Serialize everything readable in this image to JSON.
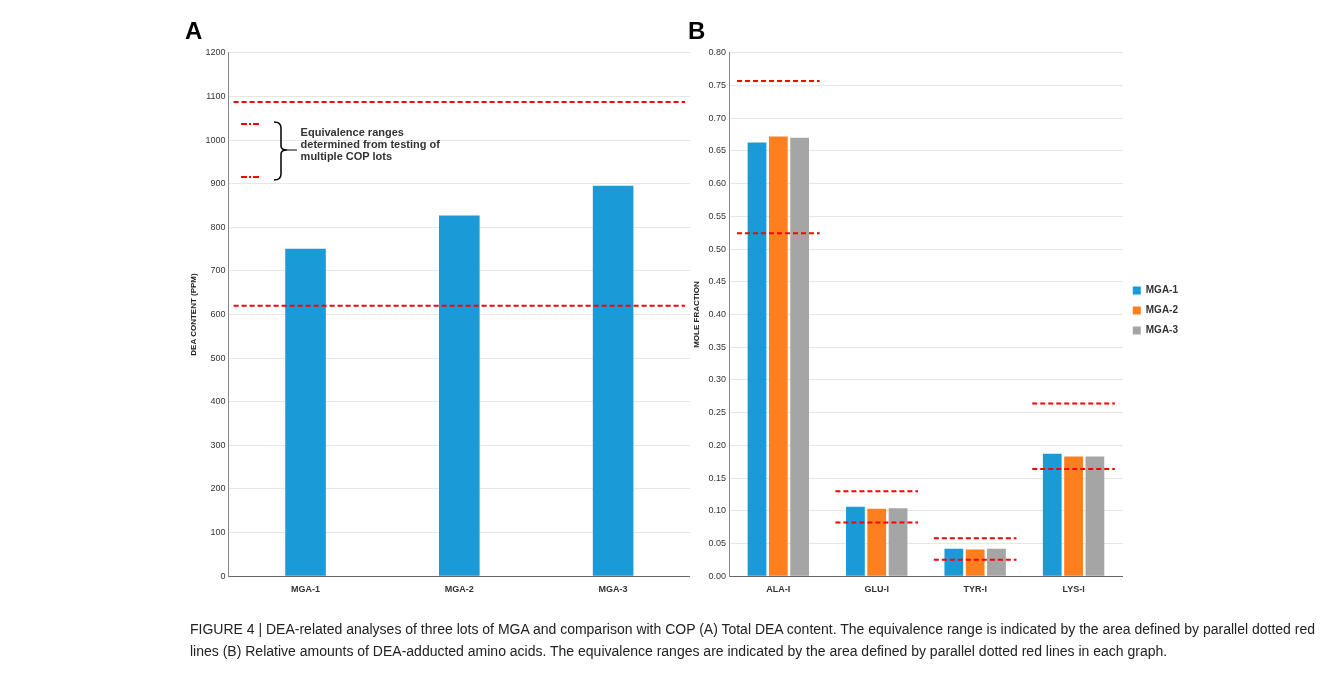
{
  "chart_data": [
    {
      "type": "bar",
      "title": "A",
      "ylabel": "DEA CONTENT (PPM)",
      "categories": [
        "MGA-1",
        "MGA-2",
        "MGA-3"
      ],
      "series": [
        {
          "color": "#1a9ad6",
          "values": [
            751,
            827,
            895
          ]
        }
      ],
      "ylim": [
        0,
        1200
      ],
      "yticks": [
        0,
        100,
        200,
        300,
        400,
        500,
        600,
        700,
        800,
        900,
        1000,
        1100,
        1200
      ],
      "grid": "y",
      "legend": false,
      "ref_lines": [
        {
          "axis": "y",
          "value": 1087,
          "label": null,
          "color": "#ff0000",
          "line_style": "dashed"
        },
        {
          "axis": "y",
          "value": 620,
          "label": null,
          "color": "#ff0000",
          "line_style": "dashed"
        }
      ],
      "annotations": [
        "Equivalence ranges determined from testing of multiple COP lots",
        "FIGURE 4 | DEA-related analyses of three lots of MGA and comparison with COP (A) Total DEA content. The equivalence range is indicated by the area defined by parallel dotted red lines (B) Relative amounts of DEA-adducted amino acids. The equivalence ranges are indicated by the area defined by parallel dotted red lines in each graph."
      ]
    },
    {
      "type": "bar",
      "title": "B",
      "ylabel": "MOLE FRACTION",
      "categories": [
        "ALA-I",
        "GLU-I",
        "TYR-I",
        "LYS-I"
      ],
      "series": [
        {
          "name": "MGA-1",
          "color": "#1a9ad6",
          "values": [
            0.663,
            0.106,
            0.042,
            0.187
          ]
        },
        {
          "name": "MGA-2",
          "color": "#fd7f1f",
          "values": [
            0.672,
            0.103,
            0.041,
            0.183
          ]
        },
        {
          "name": "MGA-3",
          "color": "#a5a5a5",
          "values": [
            0.67,
            0.104,
            0.042,
            0.183
          ]
        }
      ],
      "ref_lines": [
        {
          "axis": "y",
          "value": 0.757,
          "label": null,
          "color": "#ff0000",
          "line_style": "dashed"
        },
        {
          "axis": "y",
          "value": 0.524,
          "label": null,
          "color": "#ff0000",
          "line_style": "dashed"
        },
        {
          "axis": "y",
          "value": 0.13,
          "label": null,
          "color": "#ff0000",
          "line_style": "dashed"
        },
        {
          "axis": "y",
          "value": 0.082,
          "label": null,
          "color": "#ff0000",
          "line_style": "dashed"
        },
        {
          "axis": "y",
          "value": 0.058,
          "label": null,
          "color": "#ff0000",
          "line_style": "dashed"
        },
        {
          "axis": "y",
          "value": 0.025,
          "label": null,
          "color": "#ff0000",
          "line_style": "dashed"
        },
        {
          "axis": "y",
          "value": 0.264,
          "label": null,
          "color": "#ff0000",
          "line_style": "dashed"
        },
        {
          "axis": "y",
          "value": 0.164,
          "label": null,
          "color": "#ff0000",
          "line_style": "dashed"
        }
      ],
      "ylim": [
        0,
        0.8
      ],
      "yticks": [
        {
          "value": 0,
          "label": "0.00"
        },
        {
          "value": 0.05,
          "label": "0.05"
        },
        {
          "value": 0.1,
          "label": "0.10"
        },
        {
          "value": 0.15,
          "label": "0.15"
        },
        {
          "value": 0.2,
          "label": "0.20"
        },
        {
          "value": 0.25,
          "label": "0.25"
        },
        {
          "value": 0.3,
          "label": "0.30"
        },
        {
          "value": 0.35,
          "label": "0.35"
        },
        {
          "value": 0.4,
          "label": "0.40"
        },
        {
          "value": 0.45,
          "label": "0.45"
        },
        {
          "value": 0.5,
          "label": "0.50"
        },
        {
          "value": 0.55,
          "label": "0.55"
        },
        {
          "value": 0.6,
          "label": "0.60"
        },
        {
          "value": 0.65,
          "label": "0.65"
        },
        {
          "value": 0.7,
          "label": "0.70"
        },
        {
          "value": 0.75,
          "label": "0.75"
        },
        {
          "value": 0.8,
          "label": "0.80"
        }
      ],
      "grid": "y",
      "legend": "right"
    }
  ]
}
